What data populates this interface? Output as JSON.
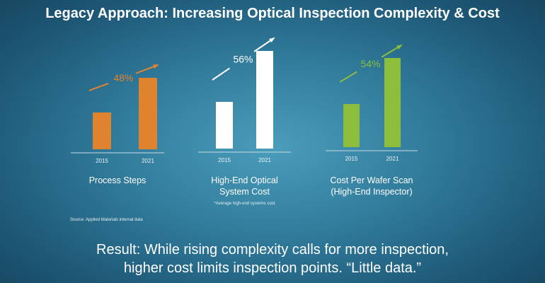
{
  "title": "Legacy Approach: Increasing Optical Inspection Complexity & Cost",
  "chart_data": [
    {
      "type": "bar",
      "title": "Process Steps",
      "categories": [
        "2015",
        "2021"
      ],
      "values": [
        52,
        101
      ],
      "value_note": "relative bar height, no axis shown",
      "annotation": "48%",
      "color": "#e08330",
      "footnote": ""
    },
    {
      "type": "bar",
      "title": "High-End Optical System Cost",
      "title_lines": [
        "High-End Optical",
        "System Cost"
      ],
      "categories": [
        "2015",
        "2021"
      ],
      "values": [
        66,
        138
      ],
      "annotation": "56%",
      "color": "#ffffff",
      "footnote": "*Average high-end systems cost"
    },
    {
      "type": "bar",
      "title": "Cost Per Wafer Scan (High-End Inspector)",
      "title_lines": [
        "Cost Per Wafer Scan",
        "(High-End Inspector)"
      ],
      "categories": [
        "2015",
        "2021"
      ],
      "values": [
        61,
        126
      ],
      "annotation": "54%",
      "color": "#8cbd3c",
      "footnote": ""
    }
  ],
  "source": "Source: Applied Materials internal data",
  "result_lines": [
    "Result: While rising complexity calls for more inspection,",
    "higher cost limits inspection points. “Little data.”"
  ]
}
